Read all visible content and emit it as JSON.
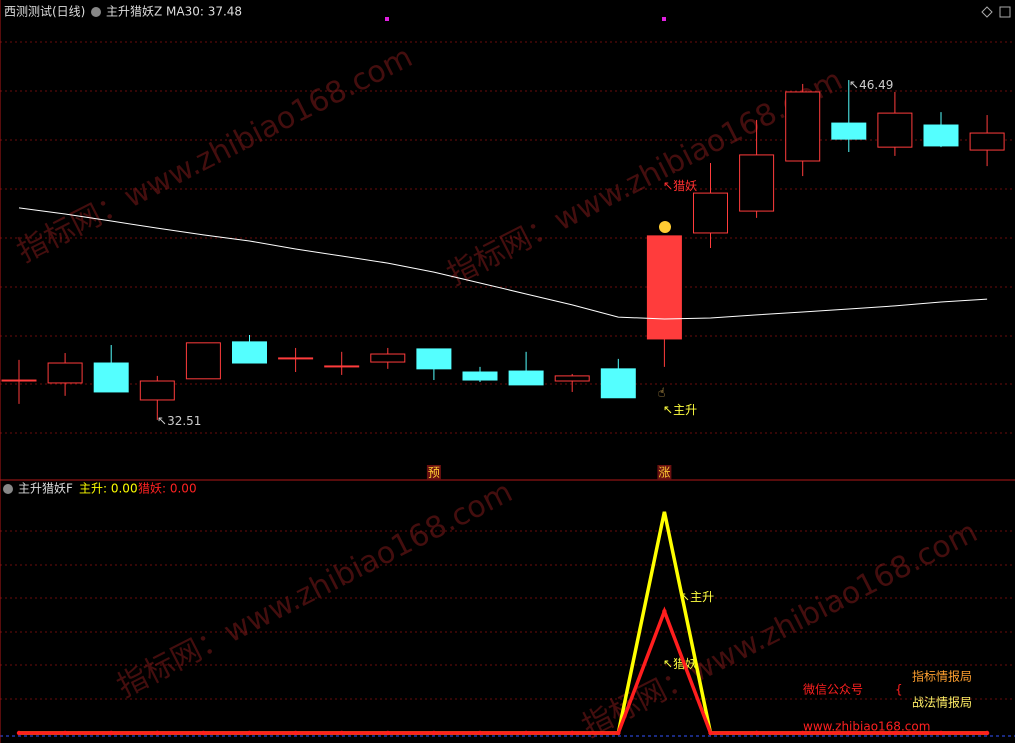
{
  "chart_data": [
    {
      "type": "candlestick",
      "title": "西测测试(日线)",
      "indicator": "主升猎妖Z",
      "open": [
        34.15,
        34.03,
        34.85,
        33.33,
        34.2,
        35.72,
        35.06,
        34.73,
        34.89,
        35.43,
        34.48,
        34.52,
        34.11,
        34.61,
        35.84,
        40.2,
        41.1,
        43.16,
        44.72,
        43.73,
        44.64,
        43.61
      ],
      "high": [
        34.98,
        35.26,
        35.59,
        34.32,
        35.68,
        36.0,
        35.47,
        35.31,
        35.47,
        35.43,
        34.69,
        35.31,
        34.4,
        35.02,
        40.08,
        43.08,
        44.85,
        46.33,
        46.49,
        46.0,
        45.17,
        45.05
      ],
      "low": [
        33.17,
        33.5,
        33.66,
        32.51,
        34.2,
        34.85,
        34.48,
        34.36,
        34.61,
        34.15,
        34.07,
        33.95,
        33.66,
        33.42,
        34.69,
        39.58,
        40.82,
        42.54,
        43.53,
        43.37,
        43.73,
        42.95
      ],
      "close": [
        34.15,
        34.85,
        33.66,
        34.11,
        35.68,
        34.85,
        35.06,
        34.73,
        35.22,
        34.61,
        34.15,
        33.95,
        34.32,
        33.42,
        40.08,
        41.84,
        43.41,
        46.0,
        44.06,
        45.13,
        43.78,
        44.31
      ],
      "up_color": "#ff3c3c",
      "down_color": "#54ffff",
      "ma": {
        "label": "MA30: 37.48",
        "color": "#ffffff",
        "values": [
          41.23,
          40.98,
          40.69,
          40.4,
          40.12,
          39.87,
          39.54,
          39.25,
          38.96,
          38.59,
          38.14,
          37.69,
          37.24,
          36.74,
          36.66,
          36.7,
          36.83,
          36.95,
          37.07,
          37.2,
          37.36,
          37.48
        ]
      },
      "ylim": [
        30.12,
        48.96
      ],
      "low_label": "32.51",
      "high_label": "46.49",
      "annotations": [
        "猎妖",
        "主升"
      ],
      "markers": [
        {
          "text": "预",
          "index": 9
        },
        {
          "text": "涨",
          "index": 14
        }
      ]
    },
    {
      "type": "line",
      "title": "主升猎妖F",
      "series": [
        {
          "name": "主升: 0.00",
          "color": "#ffff00",
          "values": [
            0,
            0,
            0,
            0,
            0,
            0,
            0,
            0,
            0,
            0,
            0,
            0,
            0,
            0,
            100,
            0,
            0,
            0,
            0,
            0,
            0,
            0
          ]
        },
        {
          "name": "猎妖: 0.00",
          "color": "#ff1e1e",
          "values": [
            0,
            0,
            0,
            0,
            0,
            0,
            0,
            0,
            0,
            0,
            0,
            0,
            0,
            0,
            55,
            0,
            0,
            0,
            0,
            0,
            0,
            0
          ]
        }
      ],
      "ylim": [
        0,
        110
      ],
      "annotations": [
        "主升",
        "猎妖"
      ]
    }
  ],
  "watermark": "指标网：www.zhibiao168.com",
  "promo": {
    "label": "微信公众号",
    "line1": "指标情报局",
    "line2": "战法情报局",
    "url": "www.zhibiao168.com"
  }
}
